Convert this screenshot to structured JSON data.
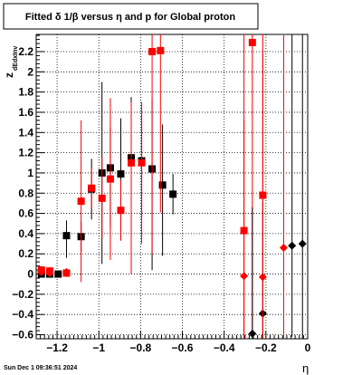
{
  "chart_data": {
    "type": "scatter",
    "title": "Fitted δ 1/β versus η and p for Global proton",
    "xlabel": "η",
    "ylabel": "z_{dEdxInv}",
    "ylabel_main": "z",
    "ylabel_sub": "dEdxInv",
    "xlim": [
      -1.3,
      0.0
    ],
    "ylim": [
      -0.64,
      2.37
    ],
    "x_ticks": [
      -1.2,
      -1.0,
      -0.8,
      -0.6,
      -0.4,
      -0.2,
      0
    ],
    "x_tick_labels": [
      "−1.2",
      "−1",
      "−0.8",
      "−0.6",
      "−0.4",
      "−0.2",
      "0"
    ],
    "y_ticks": [
      -0.6,
      -0.4,
      -0.2,
      0,
      0.2,
      0.4,
      0.6,
      0.8,
      1.0,
      1.2,
      1.4,
      1.6,
      1.8,
      2.0,
      2.2
    ],
    "y_tick_labels": [
      "−0.6",
      "−0.4",
      "−0.2",
      "0",
      "0.2",
      "0.4",
      "0.6",
      "0.8",
      "1",
      "1.2",
      "1.4",
      "1.6",
      "1.8",
      "2",
      "2.2"
    ],
    "grid": true,
    "timestamp": "Sun Dec  1 09:36:51 2024",
    "series": [
      {
        "color": "#000000",
        "marker": "square",
        "points": [
          {
            "x": -1.275,
            "y": 0.0,
            "err_low": 0.03,
            "err_high": 0.03
          },
          {
            "x": -1.235,
            "y": 0.0,
            "err_low": 0.03,
            "err_high": 0.03
          },
          {
            "x": -1.195,
            "y": 0.0,
            "err_low": 0.03,
            "err_high": 0.03
          },
          {
            "x": -1.155,
            "y": 0.38,
            "err_low": 0.22,
            "err_high": 0.15
          },
          {
            "x": -1.085,
            "y": 0.37,
            "err_low": 0.15,
            "err_high": 0.15
          },
          {
            "x": -1.035,
            "y": 0.84,
            "err_low": 0.3,
            "err_high": 0.3
          },
          {
            "x": -0.985,
            "y": 1.0,
            "err_low": 0.9,
            "err_high": 0.9
          },
          {
            "x": -0.945,
            "y": 1.05,
            "err_low": 0.6,
            "err_high": 0.4
          },
          {
            "x": -0.895,
            "y": 0.99,
            "err_low": 0.65,
            "err_high": 0.55
          },
          {
            "x": -0.845,
            "y": 1.15,
            "err_low": 0.8,
            "err_high": 0.6
          },
          {
            "x": -0.795,
            "y": 1.12,
            "err_low": 0.55,
            "err_high": 0.45
          },
          {
            "x": -0.745,
            "y": 1.04,
            "err_low": 1.0,
            "err_high": 0.7
          },
          {
            "x": -0.695,
            "y": 0.88,
            "err_low": 0.7,
            "err_high": 0.6
          },
          {
            "x": -0.645,
            "y": 0.79,
            "err_low": 0.2,
            "err_high": 0.2
          }
        ]
      },
      {
        "color": "#ff0000",
        "marker": "square",
        "points": [
          {
            "x": -1.275,
            "y": 0.04,
            "err_low": 0.04,
            "err_high": 0.04
          },
          {
            "x": -1.235,
            "y": 0.03,
            "err_low": 0.04,
            "err_high": 0.04
          },
          {
            "x": -1.155,
            "y": 0.01,
            "err_low": 0.04,
            "err_high": 0.04
          },
          {
            "x": -1.085,
            "y": 0.72,
            "err_low": 0.8,
            "err_high": 0.8
          },
          {
            "x": -1.035,
            "y": 0.85,
            "err_low": 0.2,
            "err_high": 0.2
          },
          {
            "x": -0.985,
            "y": 0.75,
            "err_low": 0.4,
            "err_high": 0.4
          },
          {
            "x": -0.945,
            "y": 0.94,
            "err_low": 0.8,
            "err_high": 0.8
          },
          {
            "x": -0.895,
            "y": 0.63,
            "err_low": 0.3,
            "err_high": 0.3
          },
          {
            "x": -0.845,
            "y": 1.1,
            "err_low": 1.1,
            "err_high": 0.6
          },
          {
            "x": -0.795,
            "y": 1.1,
            "err_low": 0.8,
            "err_high": 0.6
          },
          {
            "x": -0.745,
            "y": 2.2,
            "err_low": 2.0,
            "err_high": 0.3
          },
          {
            "x": -0.705,
            "y": 2.21,
            "err_low": 1.6,
            "err_high": 0.3
          },
          {
            "x": -0.305,
            "y": 0.43,
            "err_low": 1.1,
            "err_high": 1.1
          },
          {
            "x": -0.265,
            "y": 2.29,
            "err_low": 2.9,
            "err_high": 0.1
          },
          {
            "x": -0.215,
            "y": 0.78,
            "err_low": 1.4,
            "err_high": 1.4
          }
        ]
      },
      {
        "color": "#000000",
        "marker": "diamond",
        "points": [
          {
            "x": -0.265,
            "y": -0.59,
            "err_low": 0.05,
            "err_high": 1.25
          },
          {
            "x": -0.215,
            "y": -0.39,
            "err_low": 0.25,
            "err_high": 1.1
          },
          {
            "x": -0.075,
            "y": 0.28,
            "err_low": 0.9,
            "err_high": 2.2
          },
          {
            "x": -0.025,
            "y": 0.3,
            "err_low": 0.94,
            "err_high": 2.2
          }
        ]
      },
      {
        "color": "#ff0000",
        "marker": "diamond",
        "points": [
          {
            "x": -1.275,
            "y": 0.02,
            "err_low": 0.03,
            "err_high": 0.03
          },
          {
            "x": -1.235,
            "y": 0.01,
            "err_low": 0.03,
            "err_high": 0.03
          },
          {
            "x": -1.155,
            "y": 0.02,
            "err_low": 0.03,
            "err_high": 0.03
          },
          {
            "x": -0.305,
            "y": -0.02,
            "err_low": 0.62,
            "err_high": 2.4
          },
          {
            "x": -0.215,
            "y": -0.03,
            "err_low": 0.61,
            "err_high": 2.4
          },
          {
            "x": -0.115,
            "y": 0.26,
            "err_low": 0.9,
            "err_high": 2.1
          }
        ]
      }
    ]
  }
}
